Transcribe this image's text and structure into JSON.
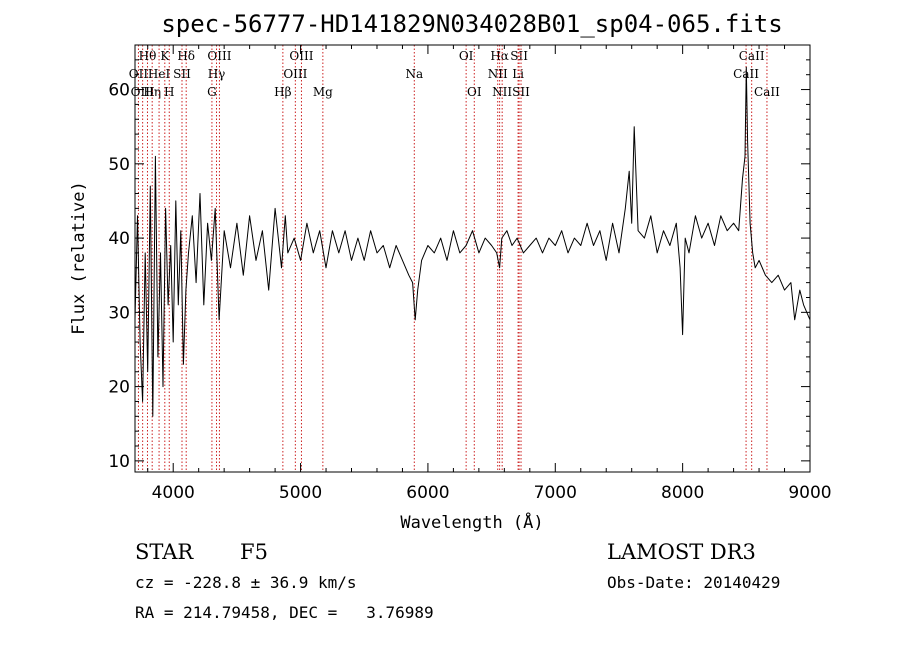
{
  "chart_data": {
    "type": "line",
    "title": "spec-56777-HD141829N034028B01_sp04-065.fits",
    "xlabel": "Wavelength (Å)",
    "ylabel": "Flux (relative)",
    "xlim": [
      3700,
      9000
    ],
    "ylim": [
      8.5,
      66
    ],
    "x_ticks": [
      4000,
      5000,
      6000,
      7000,
      8000,
      9000
    ],
    "y_ticks": [
      10,
      20,
      30,
      40,
      50,
      60
    ],
    "grid": false,
    "legend": "none",
    "colors": {
      "spectrum": "#000000",
      "line_markers": "#cc2222"
    },
    "series": [
      {
        "x": [
          3700,
          3720,
          3740,
          3760,
          3780,
          3800,
          3820,
          3840,
          3860,
          3880,
          3900,
          3920,
          3940,
          3960,
          3980,
          4000,
          4020,
          4040,
          4060,
          4080,
          4100,
          4120,
          4150,
          4180,
          4210,
          4240,
          4270,
          4300,
          4330,
          4360,
          4400,
          4450,
          4500,
          4550,
          4600,
          4650,
          4700,
          4750,
          4800,
          4850,
          4880,
          4900,
          4950,
          5000,
          5050,
          5100,
          5150,
          5200,
          5250,
          5300,
          5350,
          5400,
          5450,
          5500,
          5550,
          5600,
          5650,
          5700,
          5750,
          5800,
          5850,
          5880,
          5900,
          5920,
          5950,
          6000,
          6050,
          6100,
          6150,
          6200,
          6250,
          6300,
          6350,
          6400,
          6450,
          6500,
          6540,
          6563,
          6580,
          6620,
          6660,
          6700,
          6750,
          6800,
          6850,
          6900,
          6950,
          7000,
          7050,
          7100,
          7150,
          7200,
          7250,
          7300,
          7350,
          7400,
          7450,
          7500,
          7550,
          7580,
          7600,
          7620,
          7650,
          7700,
          7750,
          7800,
          7850,
          7900,
          7950,
          7980,
          8000,
          8020,
          8050,
          8100,
          8150,
          8200,
          8250,
          8300,
          8350,
          8400,
          8440,
          8470,
          8490,
          8500,
          8510,
          8530,
          8550,
          8570,
          8600,
          8650,
          8700,
          8750,
          8800,
          8850,
          8880,
          8920,
          8950,
          9000
        ],
        "y": [
          29,
          43,
          26,
          18,
          38,
          22,
          47,
          16,
          51,
          24,
          38,
          20,
          44,
          31,
          39,
          26,
          45,
          31,
          41,
          23,
          33,
          38,
          43,
          34,
          46,
          31,
          42,
          37,
          44,
          29,
          41,
          36,
          42,
          35,
          43,
          37,
          41,
          33,
          44,
          36,
          43,
          38,
          40,
          37,
          42,
          38,
          41,
          36,
          41,
          38,
          41,
          37,
          40,
          37,
          41,
          38,
          39,
          36,
          39,
          37,
          35,
          34,
          29,
          33,
          37,
          39,
          38,
          40,
          37,
          41,
          38,
          39,
          41,
          38,
          40,
          39,
          38,
          36,
          40,
          41,
          39,
          40,
          38,
          39,
          40,
          38,
          40,
          39,
          41,
          38,
          40,
          39,
          42,
          39,
          41,
          37,
          42,
          38,
          44,
          49,
          42,
          55,
          41,
          40,
          43,
          38,
          41,
          39,
          42,
          36,
          27,
          40,
          38,
          43,
          40,
          42,
          39,
          43,
          41,
          42,
          41,
          48,
          51,
          63,
          53,
          42,
          38,
          36,
          37,
          35,
          34,
          35,
          33,
          34,
          29,
          33,
          31,
          29
        ]
      }
    ],
    "lines": [
      {
        "label": "Hθ",
        "w": 3798,
        "row": 0
      },
      {
        "label": "OII",
        "w": 3727,
        "row": 1
      },
      {
        "label": "OIII",
        "w": 3760,
        "row": 2
      },
      {
        "label": "Hη",
        "w": 3835,
        "row": 2
      },
      {
        "label": "HeI",
        "w": 3889,
        "row": 1
      },
      {
        "label": "K",
        "w": 3934,
        "row": 0
      },
      {
        "label": "SII",
        "w": 4069,
        "row": 1
      },
      {
        "label": "H",
        "w": 3969,
        "row": 2
      },
      {
        "label": "Hδ",
        "w": 4102,
        "row": 0
      },
      {
        "label": "OIII",
        "w": 4363,
        "row": 0
      },
      {
        "label": "Hγ",
        "w": 4340,
        "row": 1
      },
      {
        "label": "G",
        "w": 4304,
        "row": 2
      },
      {
        "label": "Hβ",
        "w": 4861,
        "row": 2
      },
      {
        "label": "OIII",
        "w": 5007,
        "row": 0
      },
      {
        "label": "OIII",
        "w": 4959,
        "row": 1
      },
      {
        "label": "Mg",
        "w": 5175,
        "row": 2
      },
      {
        "label": "Na",
        "w": 5893,
        "row": 1
      },
      {
        "label": "OI",
        "w": 6300,
        "row": 0
      },
      {
        "label": "OI",
        "w": 6364,
        "row": 2
      },
      {
        "label": "Hα",
        "w": 6563,
        "row": 0
      },
      {
        "label": "SII",
        "w": 6716,
        "row": 0
      },
      {
        "label": "NII",
        "w": 6548,
        "row": 1
      },
      {
        "label": "Li",
        "w": 6708,
        "row": 1
      },
      {
        "label": "NII",
        "w": 6583,
        "row": 2
      },
      {
        "label": "SII",
        "w": 6731,
        "row": 2
      },
      {
        "label": "CaII",
        "w": 8542,
        "row": 0
      },
      {
        "label": "CaII",
        "w": 8498,
        "row": 1
      },
      {
        "label": "CaII",
        "w": 8662,
        "row": 2
      }
    ]
  },
  "info": {
    "class_label": "STAR",
    "subclass": "F5",
    "survey": "LAMOST DR3",
    "cz": "cz = -228.8 ± 36.9 km/s",
    "obs_date": "Obs-Date: 20140429",
    "coords": "RA = 214.79458, DEC =   3.76989"
  }
}
